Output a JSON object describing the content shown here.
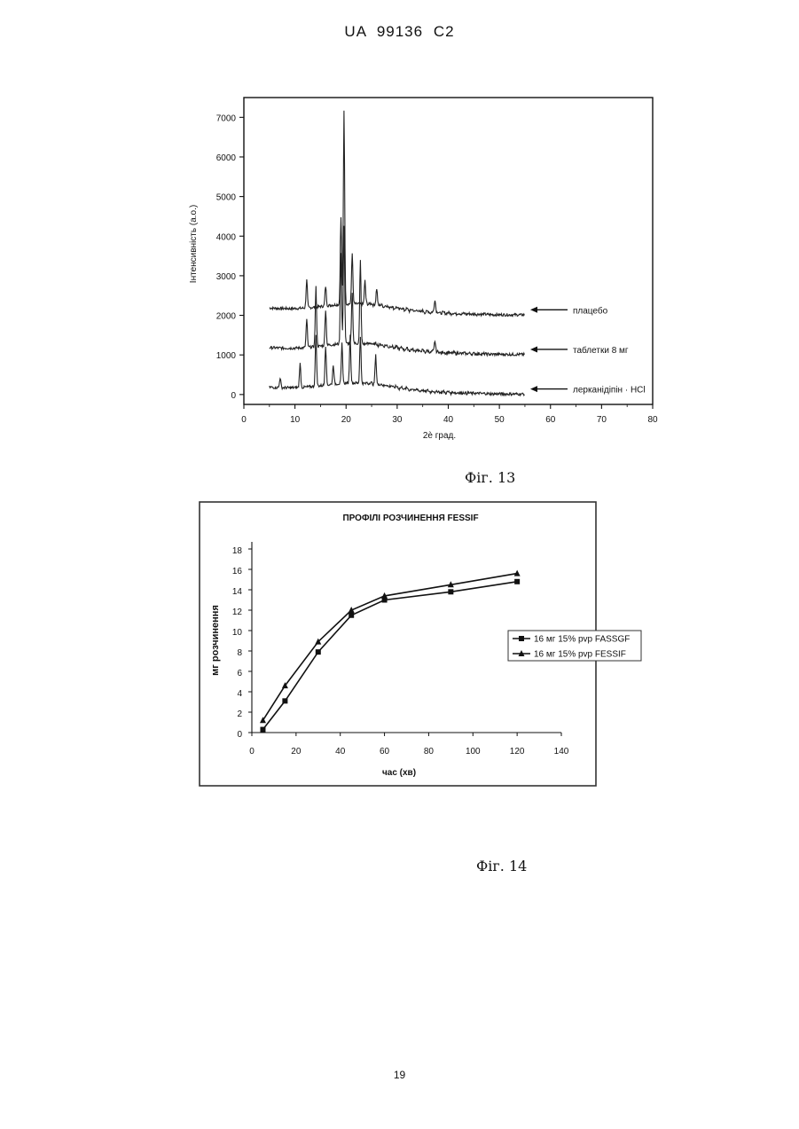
{
  "header": {
    "patent_number": "UA 99136 C2"
  },
  "page_number": "19",
  "figures": {
    "fig13_caption": "Фіг. 13",
    "fig14_caption": "Фіг. 14"
  },
  "chart_data": [
    {
      "type": "line",
      "title": "",
      "xlabel": "2è  град.",
      "ylabel": "Інтенсивність (a.o.)",
      "xlim": [
        0,
        80
      ],
      "ylim": [
        -250,
        7500
      ],
      "xticks": [
        0,
        10,
        20,
        30,
        40,
        50,
        60,
        70,
        80
      ],
      "yticks": [
        0,
        1000,
        2000,
        3000,
        4000,
        5000,
        6000,
        7000
      ],
      "grid": false,
      "series": [
        {
          "name": "плацебо",
          "offset": 2000,
          "peaks": [
            [
              12.3,
              700
            ],
            [
              16.0,
              500
            ],
            [
              19.0,
              2200
            ],
            [
              19.6,
              4900
            ],
            [
              21.2,
              1300
            ],
            [
              23.7,
              600
            ],
            [
              26.0,
              400
            ],
            [
              37.4,
              350
            ]
          ]
        },
        {
          "name": "таблетки 8 мг",
          "offset": 1000,
          "peaks": [
            [
              12.3,
              700
            ],
            [
              14.1,
              1500
            ],
            [
              16.0,
              900
            ],
            [
              19.0,
              2300
            ],
            [
              19.6,
              3000
            ],
            [
              21.2,
              1300
            ],
            [
              22.8,
              2100
            ],
            [
              37.4,
              300
            ]
          ]
        },
        {
          "name": "лерканідіпін · HCl",
          "offset": 0,
          "peaks": [
            [
              7.1,
              250
            ],
            [
              11.0,
              600
            ],
            [
              14.1,
              1300
            ],
            [
              16.0,
              1000
            ],
            [
              17.5,
              500
            ],
            [
              19.2,
              1000
            ],
            [
              20.8,
              1200
            ],
            [
              22.8,
              1200
            ],
            [
              25.8,
              700
            ]
          ]
        }
      ],
      "x_range_data": [
        5,
        55
      ]
    },
    {
      "type": "line",
      "title": "ПРОФІЛІ РОЗЧИНЕННЯ  FESSIF",
      "xlabel": "час (хв)",
      "ylabel": "мг розчинення",
      "xlim": [
        0,
        140
      ],
      "ylim": [
        0,
        18
      ],
      "xticks": [
        0,
        20,
        40,
        60,
        80,
        100,
        120,
        140
      ],
      "yticks": [
        0,
        2,
        4,
        6,
        8,
        10,
        12,
        14,
        16,
        18
      ],
      "grid": false,
      "legend": "right",
      "x": [
        5,
        15,
        30,
        45,
        60,
        90,
        120
      ],
      "series": [
        {
          "name": "16 мг  15% pvp FASSGF",
          "marker": "square",
          "values": [
            0.3,
            3.1,
            7.9,
            11.5,
            13.0,
            13.8,
            14.8
          ]
        },
        {
          "name": "16 мг  15% pvp FESSIF",
          "marker": "triangle",
          "values": [
            1.2,
            4.6,
            8.9,
            12.0,
            13.4,
            14.5,
            15.6
          ]
        }
      ]
    }
  ]
}
